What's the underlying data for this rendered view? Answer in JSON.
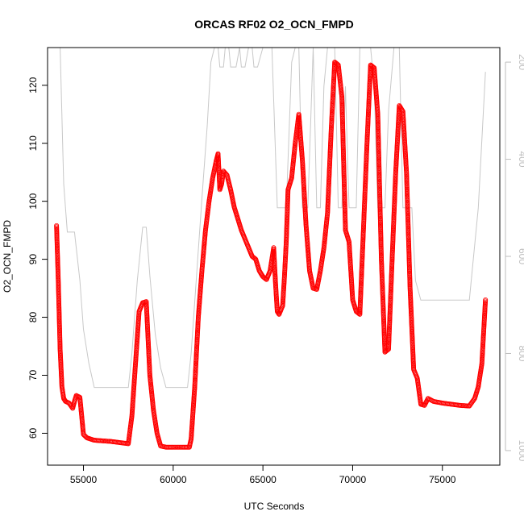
{
  "chart_data": {
    "type": "scatter",
    "title": "ORCAS RF02 O2_OCN_FMPD",
    "xlabel": "UTC Seconds",
    "ylabel": "O2_OCN_FMPD",
    "xlim": [
      53000,
      78200
    ],
    "ylim": [
      54.5,
      126.5
    ],
    "xticks": [
      55000,
      60000,
      65000,
      70000,
      75000
    ],
    "yticks": [
      60,
      70,
      80,
      90,
      100,
      110,
      120
    ],
    "secondary_axis": {
      "side": "right",
      "reversed": true,
      "ylim": [
        1030,
        170
      ],
      "ticks": [
        200,
        400,
        600,
        800,
        1000
      ],
      "color": "#bebebe"
    },
    "series": [
      {
        "role": "primary",
        "marker": "open-circle",
        "color": "#ff0000",
        "x": [
          53500,
          53600,
          53700,
          53800,
          53900,
          54000,
          54200,
          54400,
          54500,
          54600,
          54800,
          55000,
          55200,
          55400,
          55600,
          56000,
          56500,
          57000,
          57500,
          57700,
          57900,
          58100,
          58300,
          58500,
          58700,
          58900,
          59100,
          59300,
          59600,
          60000,
          60500,
          60900,
          61000,
          61200,
          61400,
          61600,
          61800,
          62000,
          62200,
          62400,
          62500,
          62600,
          62700,
          62800,
          63000,
          63200,
          63400,
          63600,
          63800,
          64000,
          64200,
          64400,
          64600,
          64800,
          65000,
          65200,
          65400,
          65600,
          65700,
          65800,
          65900,
          66100,
          66200,
          66300,
          66400,
          66600,
          66800,
          67000,
          67200,
          67400,
          67600,
          67800,
          68000,
          68200,
          68400,
          68600,
          68800,
          69000,
          69200,
          69400,
          69600,
          69800,
          70000,
          70200,
          70400,
          70600,
          70800,
          71000,
          71200,
          71400,
          71600,
          71800,
          72000,
          72200,
          72400,
          72600,
          72800,
          73000,
          73200,
          73400,
          73600,
          73800,
          74000,
          74200,
          74500,
          75000,
          75500,
          76000,
          76500,
          76800,
          77000,
          77200,
          77400
        ],
        "y": [
          95.8,
          86,
          74.5,
          68,
          66,
          65.5,
          65.2,
          64.3,
          65.5,
          66.5,
          66.2,
          59.8,
          59.2,
          59,
          58.8,
          58.7,
          58.6,
          58.4,
          58.2,
          63,
          72,
          81,
          82.5,
          82.7,
          70,
          64,
          60,
          57.8,
          57.6,
          57.6,
          57.6,
          57.6,
          59,
          68,
          80,
          88,
          95,
          100,
          104,
          107,
          108.2,
          102,
          103,
          105.2,
          104.5,
          102,
          99,
          97,
          95,
          93.5,
          92,
          90.5,
          90,
          88,
          87,
          86.5,
          88,
          92,
          86,
          81,
          80.5,
          82,
          87,
          93,
          102,
          104,
          110,
          115,
          107,
          96,
          88,
          85,
          84.8,
          88,
          92,
          98,
          112,
          124,
          123.5,
          118,
          95,
          93,
          83,
          81,
          80.5,
          95,
          110,
          123.5,
          123,
          115,
          90,
          74,
          74.5,
          90,
          105,
          116.5,
          115.5,
          105,
          85,
          71,
          69.5,
          65,
          64.8,
          66,
          65.5,
          65.2,
          65,
          64.8,
          64.7,
          66,
          68,
          72,
          83
        ]
      },
      {
        "role": "secondary",
        "style": "line",
        "color": "#c8c8c8",
        "x": [
          53500,
          53700,
          53900,
          54100,
          54300,
          54500,
          54800,
          55000,
          55300,
          55600,
          56000,
          56500,
          57000,
          57500,
          57700,
          58000,
          58300,
          58500,
          58700,
          59000,
          59300,
          59600,
          59900,
          60200,
          60500,
          60800,
          61000,
          61300,
          61600,
          61900,
          62100,
          62300,
          62500,
          62600,
          62800,
          62900,
          63100,
          63200,
          63500,
          63700,
          63800,
          64000,
          64200,
          64400,
          64500,
          64700,
          65000,
          65200,
          65500,
          65800,
          65900,
          66300,
          66600,
          66800,
          67000,
          67200,
          67500,
          67800,
          68000,
          68200,
          68400,
          68600,
          68800,
          69000,
          69200,
          69400,
          69600,
          69800,
          70000,
          70200,
          70400,
          70600,
          70800,
          71000,
          71200,
          71400,
          71600,
          71800,
          72000,
          72300,
          72600,
          72800,
          73000,
          73300,
          73500,
          73800,
          74000,
          74500,
          75000,
          75500,
          76000,
          76500,
          77000,
          77400
        ],
        "y": [
          170,
          170,
          450,
          550,
          550,
          550,
          650,
          750,
          820,
          870,
          870,
          870,
          870,
          870,
          800,
          650,
          540,
          540,
          640,
          760,
          830,
          870,
          870,
          870,
          870,
          870,
          800,
          640,
          480,
          330,
          200,
          170,
          170,
          210,
          210,
          170,
          170,
          210,
          210,
          170,
          210,
          210,
          170,
          170,
          210,
          210,
          170,
          170,
          170,
          500,
          500,
          500,
          200,
          170,
          170,
          500,
          500,
          170,
          500,
          500,
          250,
          170,
          170,
          170,
          500,
          500,
          250,
          500,
          500,
          500,
          170,
          170,
          170,
          170,
          250,
          500,
          500,
          500,
          300,
          170,
          170,
          500,
          500,
          500,
          650,
          690,
          690,
          690,
          690,
          690,
          690,
          690,
          500,
          220
        ]
      }
    ]
  }
}
